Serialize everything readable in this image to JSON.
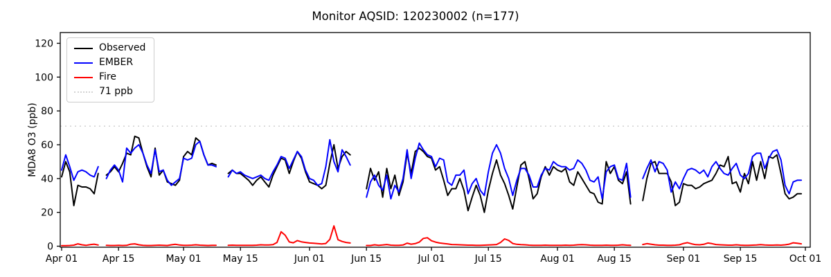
{
  "title": "Monitor AQSID: 120230002 (n=177)",
  "colors": {
    "observed": "#000000",
    "ember": "#0000ff",
    "fire": "#ff0000",
    "threshold": "#d3d3d3",
    "axis": "#000000",
    "background": "#ffffff"
  },
  "legend": {
    "items": [
      {
        "label": "Observed",
        "color": "#000000",
        "style": "solid"
      },
      {
        "label": "EMBER",
        "color": "#0000ff",
        "style": "solid"
      },
      {
        "label": "Fire",
        "color": "#ff0000",
        "style": "solid"
      },
      {
        "label": "71 ppb",
        "color": "#d3d3d3",
        "style": "dotted"
      }
    ]
  },
  "chart_data": {
    "type": "line",
    "title": "Monitor AQSID: 120230002 (n=177)",
    "xlabel": "",
    "ylabel": "MDA8 O3 (ppb)",
    "x_unit": "days since Apr 01",
    "x_range_days": 183,
    "ylim": [
      0,
      126
    ],
    "y_ticks": [
      0,
      20,
      40,
      60,
      80,
      100,
      120
    ],
    "x_tick_labels": [
      "Apr 01",
      "Apr 15",
      "May 01",
      "May 15",
      "Jun 01",
      "Jun 15",
      "Jul 01",
      "Jul 15",
      "Aug 01",
      "Aug 15",
      "Sep 01",
      "Sep 15",
      "Oct 01"
    ],
    "x_tick_days": [
      0,
      14,
      30,
      44,
      61,
      75,
      91,
      105,
      122,
      136,
      153,
      167,
      183
    ],
    "threshold": {
      "label": "71 ppb",
      "value": 71
    },
    "legend_position": "upper left",
    "grid": false,
    "missing_periods": [
      "Apr 11",
      "May 10-11",
      "Jun 12-14",
      "Aug 20-21"
    ],
    "series": [
      {
        "name": "Observed",
        "color": "#000000",
        "values": [
          41,
          50,
          44,
          24,
          36,
          35,
          35,
          34,
          31,
          43,
          null,
          42,
          44,
          47,
          44,
          49,
          55,
          54,
          65,
          64,
          55,
          47,
          41,
          58,
          42,
          45,
          38,
          37,
          36,
          39,
          53,
          56,
          54,
          64,
          62,
          54,
          48,
          49,
          48,
          null,
          null,
          43,
          45,
          43,
          43,
          41,
          39,
          36,
          39,
          41,
          38,
          35,
          42,
          47,
          52,
          51,
          43,
          50,
          56,
          52,
          44,
          38,
          37,
          36,
          34,
          36,
          49,
          60,
          46,
          53,
          56,
          54,
          null,
          null,
          null,
          34,
          46,
          39,
          44,
          29,
          46,
          34,
          42,
          30,
          38,
          55,
          43,
          56,
          58,
          56,
          53,
          52,
          45,
          47,
          39,
          30,
          34,
          34,
          40,
          33,
          21,
          29,
          36,
          30,
          20,
          33,
          43,
          51,
          42,
          37,
          30,
          22,
          35,
          48,
          50,
          40,
          28,
          31,
          41,
          47,
          42,
          47,
          45,
          44,
          46,
          38,
          36,
          44,
          40,
          36,
          32,
          31,
          26,
          25,
          50,
          43,
          47,
          39,
          37,
          44,
          25,
          null,
          null,
          27,
          40,
          49,
          50,
          43,
          43,
          43,
          38,
          24,
          26,
          37,
          36,
          36,
          34,
          35,
          37,
          38,
          39,
          43,
          48,
          47,
          53,
          37,
          38,
          32,
          43,
          37,
          50,
          39,
          50,
          40,
          53,
          52,
          54,
          43,
          31,
          28,
          29,
          31,
          31
        ]
      },
      {
        "name": "EMBER",
        "color": "#0000ff",
        "values": [
          45,
          54,
          47,
          39,
          44,
          45,
          44,
          42,
          41,
          47,
          null,
          40,
          45,
          48,
          45,
          38,
          58,
          55,
          58,
          60,
          55,
          48,
          43,
          57,
          44,
          45,
          39,
          36,
          38,
          40,
          52,
          51,
          52,
          60,
          62,
          54,
          48,
          48,
          47,
          null,
          null,
          41,
          45,
          43,
          44,
          42,
          41,
          40,
          41,
          42,
          40,
          39,
          44,
          48,
          53,
          52,
          46,
          51,
          56,
          53,
          45,
          40,
          39,
          36,
          37,
          47,
          63,
          50,
          44,
          57,
          53,
          48,
          null,
          null,
          null,
          29,
          38,
          42,
          36,
          33,
          42,
          28,
          36,
          32,
          40,
          57,
          40,
          52,
          61,
          57,
          54,
          53,
          47,
          52,
          51,
          38,
          36,
          42,
          42,
          45,
          31,
          37,
          40,
          33,
          30,
          44,
          55,
          60,
          55,
          46,
          40,
          30,
          39,
          46,
          46,
          42,
          35,
          35,
          42,
          46,
          45,
          50,
          48,
          47,
          47,
          45,
          46,
          51,
          49,
          45,
          39,
          38,
          41,
          28,
          44,
          47,
          48,
          40,
          39,
          49,
          29,
          null,
          null,
          40,
          46,
          51,
          44,
          50,
          49,
          45,
          32,
          38,
          34,
          40,
          45,
          46,
          45,
          43,
          45,
          41,
          47,
          50,
          46,
          43,
          42,
          46,
          49,
          42,
          40,
          43,
          53,
          55,
          55,
          46,
          52,
          56,
          57,
          51,
          36,
          31,
          38,
          39,
          39
        ]
      },
      {
        "name": "Fire",
        "color": "#ff0000",
        "values": [
          0.3,
          0.3,
          0.4,
          0.6,
          1.4,
          0.8,
          0.5,
          0.9,
          1.2,
          0.7,
          null,
          0.5,
          0.4,
          0.4,
          0.5,
          0.4,
          0.5,
          1.2,
          1.4,
          0.8,
          0.5,
          0.4,
          0.4,
          0.5,
          0.6,
          0.5,
          0.4,
          0.8,
          1.1,
          0.7,
          0.5,
          0.5,
          0.6,
          0.8,
          0.6,
          0.5,
          0.4,
          0.5,
          0.5,
          null,
          null,
          0.5,
          0.6,
          0.5,
          0.5,
          0.5,
          0.5,
          0.5,
          0.6,
          0.8,
          0.7,
          0.7,
          0.9,
          2.2,
          8.5,
          6.5,
          2.5,
          2.0,
          3.3,
          2.6,
          2.2,
          1.9,
          1.7,
          1.5,
          1.3,
          1.6,
          4.0,
          12.0,
          3.8,
          2.8,
          2.2,
          1.9,
          null,
          null,
          null,
          0.4,
          0.4,
          0.8,
          0.5,
          0.7,
          1.0,
          0.6,
          0.5,
          0.5,
          0.7,
          1.8,
          1.2,
          1.5,
          2.4,
          4.6,
          5.0,
          3.2,
          2.4,
          1.9,
          1.6,
          1.3,
          1.0,
          0.9,
          0.8,
          0.7,
          0.6,
          0.6,
          0.5,
          0.5,
          0.6,
          0.7,
          0.8,
          1.0,
          2.2,
          4.3,
          3.4,
          1.6,
          1.1,
          0.9,
          0.8,
          0.6,
          0.5,
          0.5,
          0.5,
          0.6,
          0.5,
          0.5,
          0.5,
          0.5,
          0.6,
          0.5,
          0.6,
          0.8,
          0.9,
          0.8,
          0.6,
          0.5,
          0.5,
          0.5,
          0.6,
          0.5,
          0.5,
          0.6,
          0.8,
          0.6,
          0.5,
          null,
          null,
          1.0,
          1.5,
          1.2,
          0.8,
          0.6,
          0.6,
          0.5,
          0.5,
          0.6,
          0.8,
          1.6,
          2.1,
          1.4,
          0.9,
          0.8,
          1.1,
          1.9,
          1.5,
          1.0,
          0.8,
          0.7,
          0.6,
          0.6,
          0.8,
          0.6,
          0.5,
          0.5,
          0.6,
          0.7,
          0.9,
          0.7,
          0.6,
          0.6,
          0.7,
          0.6,
          0.8,
          1.2,
          2.0,
          1.7,
          1.4
        ]
      }
    ]
  }
}
